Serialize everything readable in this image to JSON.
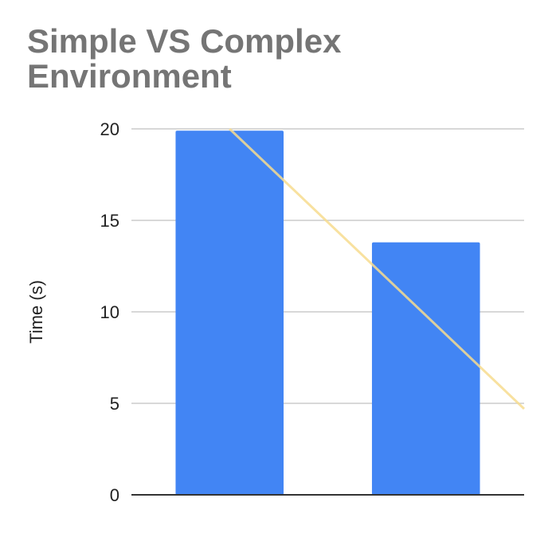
{
  "chart_data": {
    "type": "bar",
    "title": "Simple VS Complex Environment",
    "xlabel": "",
    "ylabel": "Time (s)",
    "categories": [
      "",
      ""
    ],
    "series": [
      {
        "values": [
          19.9,
          13.8
        ]
      }
    ],
    "trendline": {
      "type": "linear",
      "values": [
        20.0,
        9.8
      ]
    },
    "ylim": [
      0,
      20
    ],
    "yticks": [
      0,
      5,
      10,
      15,
      20
    ],
    "grid": true,
    "legend": "none",
    "colors": {
      "bar": "#4285f4",
      "trendline": "#f7dc8e",
      "grid": "#cccccc",
      "baseline": "#333333",
      "title": "#757575"
    }
  }
}
